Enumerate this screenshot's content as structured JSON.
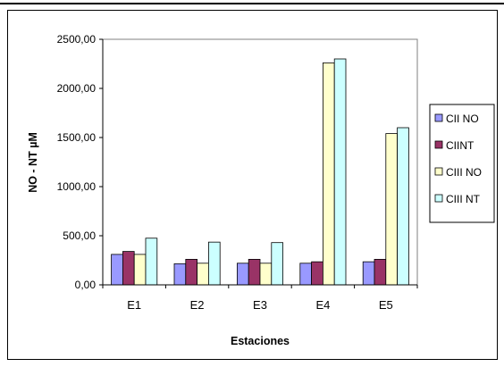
{
  "chart_data": {
    "type": "bar",
    "categories": [
      "E1",
      "E2",
      "E3",
      "E4",
      "E5"
    ],
    "series": [
      {
        "name": "CII NO",
        "color": "#9999ff",
        "values": [
          310,
          215,
          220,
          220,
          235
        ]
      },
      {
        "name": "CIINT",
        "color": "#993366",
        "values": [
          340,
          260,
          260,
          235,
          260
        ]
      },
      {
        "name": "CIII NO",
        "color": "#ffffcc",
        "values": [
          310,
          220,
          220,
          2260,
          1540
        ]
      },
      {
        "name": "CIII NT",
        "color": "#ccffff",
        "values": [
          475,
          435,
          430,
          2300,
          1600
        ]
      }
    ],
    "yticks": [
      "0,00",
      "500,00",
      "1000,00",
      "1500,00",
      "2000,00",
      "2500,00"
    ],
    "ylim": [
      0,
      2500
    ],
    "ylabel": "NO - NT µM",
    "xlabel": "Estaciones",
    "title": "",
    "grid": false,
    "legend_position": "right"
  }
}
